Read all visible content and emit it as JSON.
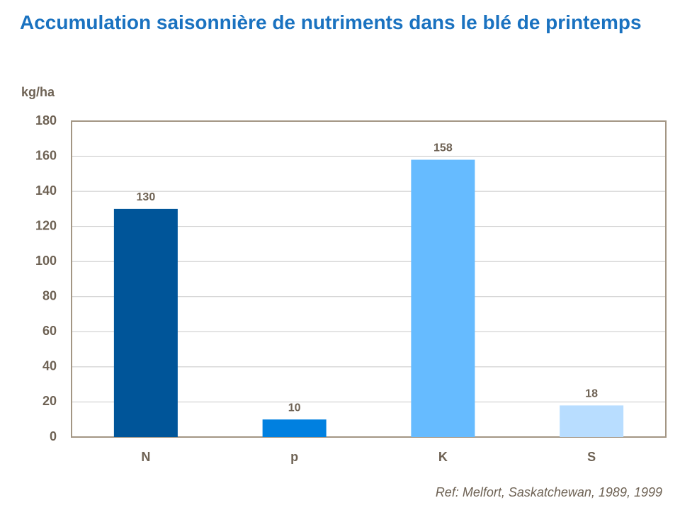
{
  "chart_data": {
    "type": "bar",
    "title": "Accumulation saisonnière de nutriments dans le blé de printemps",
    "y_label": "kg/ha",
    "note": "Ref: Melfort, Saskatchewan, 1989, 1999",
    "categories": [
      "N",
      "p",
      "K",
      "S"
    ],
    "values": [
      130,
      10,
      158,
      18
    ],
    "colors": [
      "#005599",
      "#0080e0",
      "#66bbff",
      "#b8ddff"
    ],
    "ylim": [
      0,
      180
    ],
    "yticks": [
      0,
      20,
      40,
      60,
      80,
      100,
      120,
      140,
      160,
      180
    ],
    "grid": true
  }
}
